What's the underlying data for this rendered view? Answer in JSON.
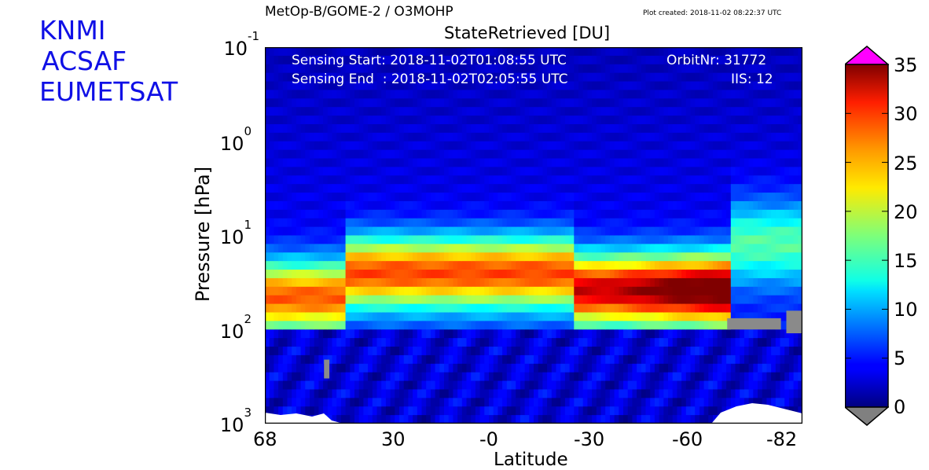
{
  "logos": [
    "KNMI",
    "ACSAF",
    "EUMETSAT"
  ],
  "header": {
    "product": "MetOp-B/GOME-2 / O3MOHP",
    "created": "Plot created: 2018-11-02 08:22:37 UTC"
  },
  "chart_data": {
    "type": "heatmap",
    "title": "StateRetrieved [DU]",
    "xlabel": "Latitude",
    "ylabel": "Pressure [hPa]",
    "y_scale": "log",
    "y_inverted": true,
    "xlim": [
      68,
      -86
    ],
    "ylim": [
      1000,
      0.1
    ],
    "x_ticks": [
      "68",
      "30",
      "-0",
      "-30",
      "-60",
      "-82"
    ],
    "y_ticks": [
      {
        "base": "10",
        "exp": "-1"
      },
      {
        "base": "10",
        "exp": "0"
      },
      {
        "base": "10",
        "exp": "1"
      },
      {
        "base": "10",
        "exp": "2"
      },
      {
        "base": "10",
        "exp": "3"
      }
    ],
    "annotations": {
      "sensing_start": "Sensing Start: 2018-11-02T01:08:55 UTC",
      "sensing_end": "Sensing End  : 2018-11-02T02:05:55 UTC",
      "orbit": "OrbitNr: 31772",
      "iis": "IIS: 12"
    },
    "colorbar": {
      "range": [
        0,
        35
      ],
      "ticks": [
        "35",
        "30",
        "25",
        "20",
        "15",
        "10",
        "5",
        "0"
      ],
      "over_color": "#ff00ff",
      "under_color": "#808080",
      "colormap": "jet"
    },
    "features": {
      "ozone_peak_pressure_hPa": 30,
      "peak_value_DU": 33
    }
  }
}
